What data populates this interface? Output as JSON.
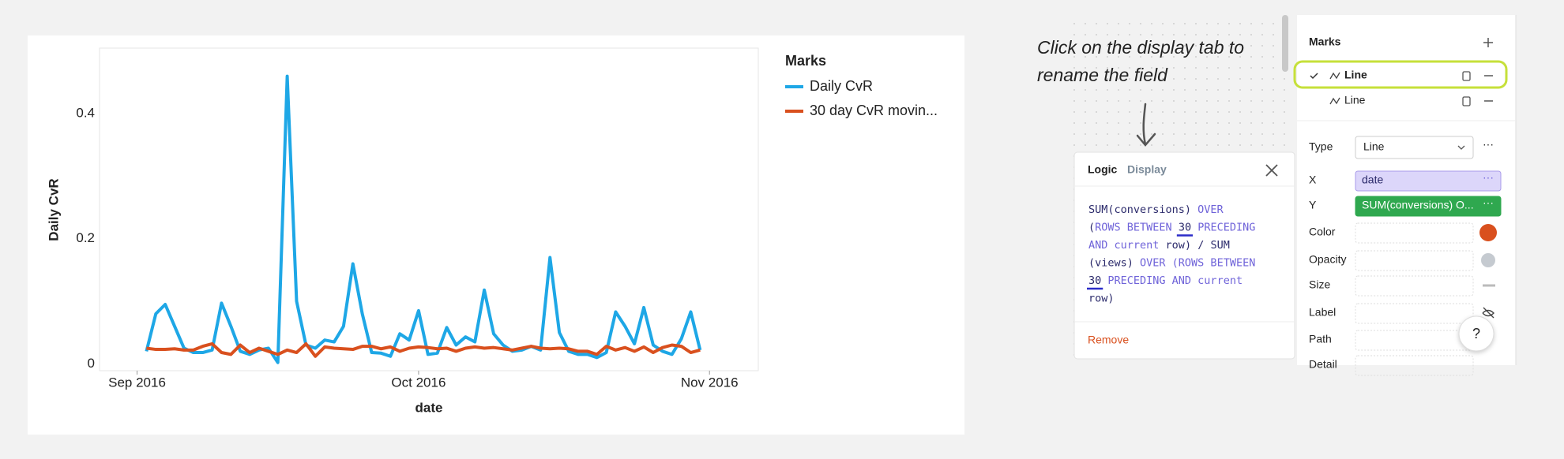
{
  "chart_data": {
    "type": "line",
    "y_label": "Daily CvR",
    "x_label": "date",
    "legend_title": "Marks",
    "x": [
      1,
      2,
      3,
      4,
      5,
      6,
      7,
      8,
      9,
      10,
      11,
      12,
      13,
      14,
      15,
      16,
      17,
      18,
      19,
      20,
      21,
      22,
      23,
      24,
      25,
      26,
      27,
      28,
      29,
      30,
      31,
      32,
      33,
      34,
      35,
      36,
      37,
      38,
      39,
      40,
      41,
      42,
      43,
      44,
      45,
      46,
      47,
      48,
      49,
      50,
      51,
      52,
      53,
      54,
      55,
      56,
      57,
      58,
      59,
      60
    ],
    "xlim": [
      -4,
      66.2
    ],
    "xticks": [
      {
        "value": 0,
        "label": "Sep 2016"
      },
      {
        "value": 30,
        "label": "Oct 2016"
      },
      {
        "value": 61,
        "label": "Nov 2016"
      }
    ],
    "ylim": [
      -0.011,
      0.505
    ],
    "yticks": [
      0,
      0.2,
      0.4
    ],
    "grid": false,
    "series": [
      {
        "name": "Daily CvR",
        "color": "#1ea7e6",
        "values": [
          0.02,
          0.08,
          0.095,
          0.06,
          0.025,
          0.018,
          0.018,
          0.022,
          0.097,
          0.06,
          0.02,
          0.015,
          0.022,
          0.025,
          0.002,
          0.46,
          0.1,
          0.03,
          0.025,
          0.038,
          0.035,
          0.06,
          0.16,
          0.08,
          0.018,
          0.017,
          0.012,
          0.048,
          0.038,
          0.085,
          0.015,
          0.017,
          0.058,
          0.03,
          0.043,
          0.035,
          0.118,
          0.048,
          0.03,
          0.02,
          0.022,
          0.028,
          0.022,
          0.17,
          0.05,
          0.02,
          0.015,
          0.015,
          0.01,
          0.018,
          0.083,
          0.06,
          0.032,
          0.09,
          0.03,
          0.02,
          0.015,
          0.04,
          0.083,
          0.022
        ]
      },
      {
        "name": "30 day CvR movin...",
        "color": "#d9501e",
        "values": [
          0.025,
          0.023,
          0.023,
          0.024,
          0.022,
          0.022,
          0.028,
          0.032,
          0.018,
          0.015,
          0.03,
          0.018,
          0.025,
          0.02,
          0.015,
          0.022,
          0.018,
          0.032,
          0.012,
          0.027,
          0.025,
          0.024,
          0.023,
          0.028,
          0.028,
          0.024,
          0.027,
          0.02,
          0.025,
          0.027,
          0.026,
          0.024,
          0.025,
          0.02,
          0.025,
          0.027,
          0.025,
          0.026,
          0.024,
          0.022,
          0.025,
          0.028,
          0.025,
          0.024,
          0.025,
          0.024,
          0.02,
          0.02,
          0.015,
          0.028,
          0.022,
          0.026,
          0.02,
          0.027,
          0.018,
          0.026,
          0.03,
          0.028,
          0.018,
          0.022
        ]
      }
    ]
  },
  "annotation": [
    "Click on the display tab to",
    "rename the field"
  ],
  "popup": {
    "tabs": [
      "Logic",
      "Display"
    ],
    "code": [
      [
        {
          "text": "SUM(conversions)",
          "kind": "id"
        },
        {
          "text": " OVER",
          "kind": "kw"
        }
      ],
      [
        {
          "text": "(",
          "kind": "id"
        },
        {
          "text": "ROWS BETWEEN ",
          "kind": "kw"
        },
        {
          "text": "30",
          "kind": "num"
        },
        {
          "text": " PRECEDING",
          "kind": "kw"
        }
      ],
      [
        {
          "text": "AND current ",
          "kind": "kw"
        },
        {
          "text": "row",
          "kind": "id"
        },
        {
          "text": ") / SUM",
          "kind": "id"
        }
      ],
      [
        {
          "text": "(views) ",
          "kind": "id"
        },
        {
          "text": "OVER (ROWS BETWEEN",
          "kind": "kw"
        }
      ],
      [
        {
          "text": "30",
          "kind": "num"
        },
        {
          "text": " PRECEDING AND current",
          "kind": "kw"
        }
      ],
      [
        {
          "text": "row)",
          "kind": "id"
        }
      ]
    ],
    "remove": "Remove"
  },
  "panel": {
    "title": "Marks",
    "marks": [
      "Line",
      "Line"
    ],
    "fields": [
      {
        "label": "Type",
        "value": "Line"
      },
      {
        "label": "X",
        "value": "date"
      },
      {
        "label": "Y",
        "value": "SUM(conversions) O..."
      },
      {
        "label": "Color"
      },
      {
        "label": "Opacity"
      },
      {
        "label": "Size"
      },
      {
        "label": "Label"
      },
      {
        "label": "Path"
      },
      {
        "label": "Detail"
      }
    ],
    "help": "?"
  }
}
